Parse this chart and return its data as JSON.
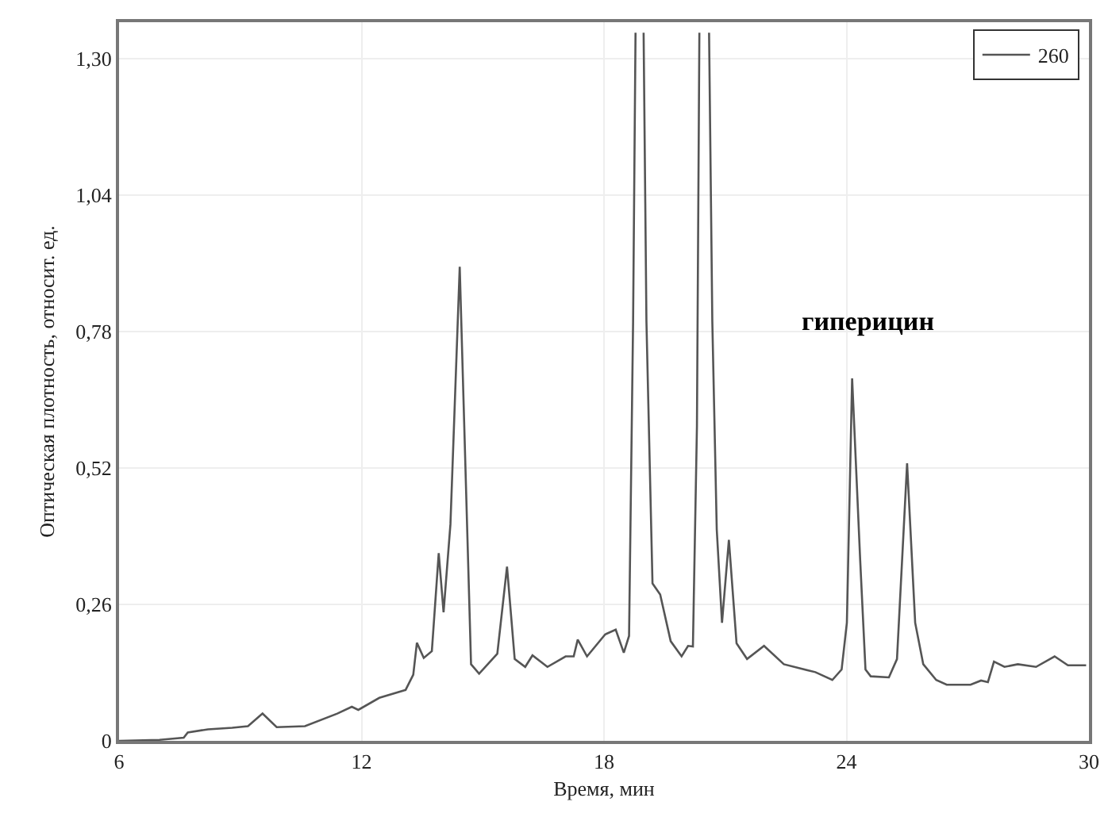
{
  "chart_data": {
    "type": "line",
    "xlabel": "Время, мин",
    "ylabel": "Оптическая плотность, относит. ед.",
    "xlim": [
      6,
      30
    ],
    "xticks": [
      6,
      12,
      18,
      24,
      30
    ],
    "ylim": [
      0,
      1.37
    ],
    "yticks": [
      0,
      {
        "value": 0.26,
        "label": "0,26"
      },
      {
        "value": 0.52,
        "label": "0,52"
      },
      {
        "value": 0.78,
        "label": "0,78"
      },
      {
        "value": 1.04,
        "label": "1,04"
      },
      {
        "value": 1.3,
        "label": "1,30"
      }
    ],
    "grid": true,
    "legend": "top right",
    "marker": "none",
    "line_style": "solid",
    "annotations": [
      {
        "text": "гиперицин",
        "x": 24.14,
        "y": 0.691
      }
    ],
    "series": [
      {
        "name": "260",
        "color": "#555555",
        "x": [
          6,
          7.0,
          7.6,
          7.7,
          8.2,
          8.8,
          9.19,
          9.55,
          9.9,
          10.6,
          11.4,
          11.76,
          11.92,
          12.44,
          13.09,
          13.28,
          13.37,
          13.54,
          13.74,
          13.91,
          14.03,
          14.2,
          14.43,
          14.71,
          14.91,
          15.36,
          15.6,
          15.79,
          16.05,
          16.23,
          16.6,
          17.05,
          17.25,
          17.35,
          17.58,
          18.03,
          18.29,
          18.49,
          18.62,
          18.72,
          18.78,
          18.88,
          18.98,
          19.05,
          19.2,
          19.39,
          19.65,
          19.92,
          20.08,
          20.2,
          20.3,
          20.36,
          20.48,
          20.6,
          20.68,
          20.79,
          20.92,
          21.09,
          21.28,
          21.54,
          21.96,
          22.45,
          23.23,
          23.65,
          23.88,
          24.01,
          24.14,
          24.34,
          24.47,
          24.6,
          25.05,
          25.25,
          25.5,
          25.7,
          25.9,
          26.22,
          26.48,
          27.07,
          27.33,
          27.5,
          27.65,
          27.91,
          28.24,
          28.69,
          29.15,
          29.48,
          29.93
        ],
        "values": [
          0,
          0.002,
          0.006,
          0.016,
          0.022,
          0.025,
          0.028,
          0.052,
          0.026,
          0.028,
          0.052,
          0.065,
          0.059,
          0.082,
          0.097,
          0.126,
          0.187,
          0.158,
          0.171,
          0.358,
          0.245,
          0.413,
          0.904,
          0.146,
          0.128,
          0.166,
          0.332,
          0.156,
          0.141,
          0.163,
          0.141,
          0.161,
          0.161,
          0.193,
          0.161,
          0.203,
          0.212,
          0.168,
          0.2,
          0.8,
          1.35,
          null,
          1.35,
          0.8,
          0.3,
          0.279,
          0.19,
          0.161,
          0.181,
          0.18,
          0.6,
          1.35,
          null,
          1.35,
          0.8,
          0.403,
          0.225,
          0.383,
          0.186,
          0.156,
          0.181,
          0.146,
          0.131,
          0.116,
          0.136,
          0.225,
          0.691,
          0.343,
          0.136,
          0.123,
          0.121,
          0.156,
          0.529,
          0.225,
          0.146,
          0.116,
          0.107,
          0.107,
          0.115,
          0.112,
          0.151,
          0.141,
          0.146,
          0.141,
          0.161,
          0.144,
          0.144
        ]
      }
    ]
  }
}
